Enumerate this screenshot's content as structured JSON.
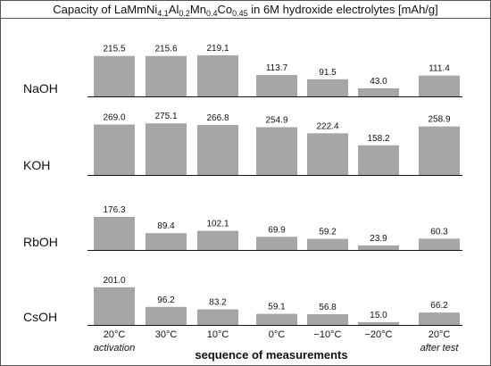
{
  "chart_data": {
    "type": "bar",
    "title": {
      "prefix": "Capacity of LaMmNi",
      "parts": [
        {
          "sub": "4.1",
          "text": "Al"
        },
        {
          "sub": "0.2",
          "text": "Mn"
        },
        {
          "sub": "0.4",
          "text": "Co"
        },
        {
          "sub": "0.45",
          "text": " in 6M hydroxide electrolytes [mAh/g]"
        }
      ]
    },
    "xlabel": "sequence of measurements",
    "categories": [
      "20°C",
      "30°C",
      "10°C",
      "0°C",
      "−10°C",
      "−20°C",
      "20°C"
    ],
    "category_notes": [
      "activation",
      "",
      "",
      "",
      "",
      "",
      "after test"
    ],
    "series": [
      {
        "name": "NaOH",
        "values": [
          215.5,
          215.6,
          219.1,
          113.7,
          91.5,
          43.0,
          111.4
        ],
        "labels": [
          "215.5",
          "215.6",
          "219.1",
          "113.7",
          "91.5",
          "43.0",
          "111.4"
        ]
      },
      {
        "name": "KOH",
        "values": [
          269.0,
          275.1,
          266.8,
          254.9,
          222.4,
          158.2,
          258.9
        ],
        "labels": [
          "269.0",
          "275.1",
          "266.8",
          "254.9",
          "222.4",
          "158.2",
          "258.9"
        ]
      },
      {
        "name": "RbOH",
        "values": [
          176.3,
          89.4,
          102.1,
          69.9,
          59.2,
          23.9,
          60.3
        ],
        "labels": [
          "176.3",
          "89.4",
          "102.1",
          "69.9",
          "59.2",
          "23.9",
          "60.3"
        ]
      },
      {
        "name": "CsOH",
        "values": [
          201.0,
          96.2,
          83.2,
          59.1,
          56.8,
          15.0,
          66.2
        ],
        "labels": [
          "201.0",
          "96.2",
          "83.2",
          "59.1",
          "56.8",
          "15.0",
          "66.2"
        ]
      }
    ],
    "bar_color": "#a6a6a6",
    "grid": false,
    "legend": "none"
  }
}
